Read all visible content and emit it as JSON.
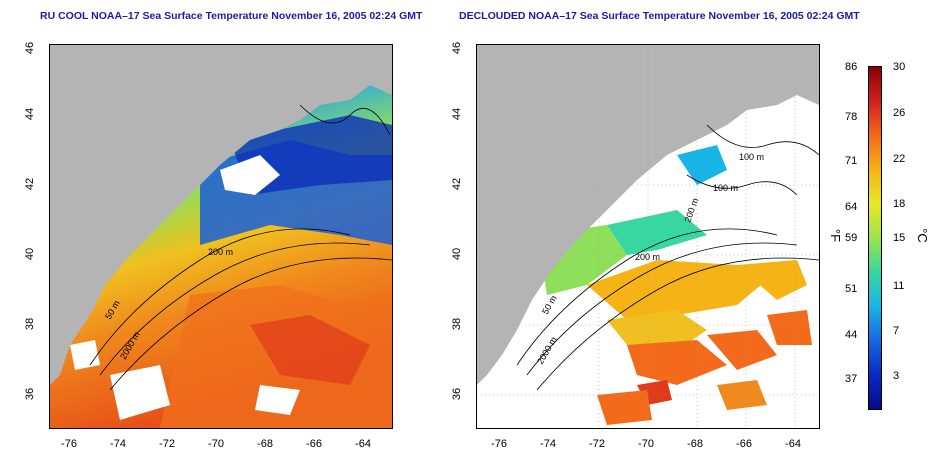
{
  "left_panel": {
    "title": "RU COOL NOAA–17 Sea Surface Temperature November 16, 2005 02:24 GMT",
    "y_ticks": [
      "46",
      "44",
      "42",
      "40",
      "38",
      "36"
    ],
    "x_ticks": [
      "-76",
      "-74",
      "-72",
      "-70",
      "-68",
      "-66",
      "-64"
    ],
    "contour_labels": [
      "200 m",
      "50 m",
      "2000 m"
    ]
  },
  "right_panel": {
    "title": "DECLOUDED NOAA–17 Sea Surface Temperature November 16, 2005 02:24 GMT",
    "y_ticks": [
      "46",
      "44",
      "42",
      "40",
      "38",
      "36"
    ],
    "x_ticks": [
      "-76",
      "-74",
      "-72",
      "-70",
      "-68",
      "-66",
      "-64"
    ],
    "contour_labels": [
      "100 m",
      "100 m",
      "200 m",
      "200 m",
      "50 m",
      "2000 m"
    ]
  },
  "colorbar": {
    "fahrenheit_ticks": [
      "86",
      "78",
      "71",
      "64",
      "59",
      "51",
      "44",
      "37"
    ],
    "celsius_ticks": [
      "30",
      "26",
      "22",
      "18",
      "15",
      "11",
      "7",
      "3"
    ],
    "fahrenheit_unit": "°F",
    "celsius_unit": "°C",
    "colors": [
      "#8b0000",
      "#d41f1f",
      "#f26a1a",
      "#f5b316",
      "#e8e826",
      "#9ce34a",
      "#38d6a0",
      "#18b4e6",
      "#1668e0",
      "#0a2bc2",
      "#050a8a"
    ]
  },
  "colors": {
    "land": "#b4b4b4",
    "no_data": "#ffffff",
    "title": "#1b1ba8"
  }
}
